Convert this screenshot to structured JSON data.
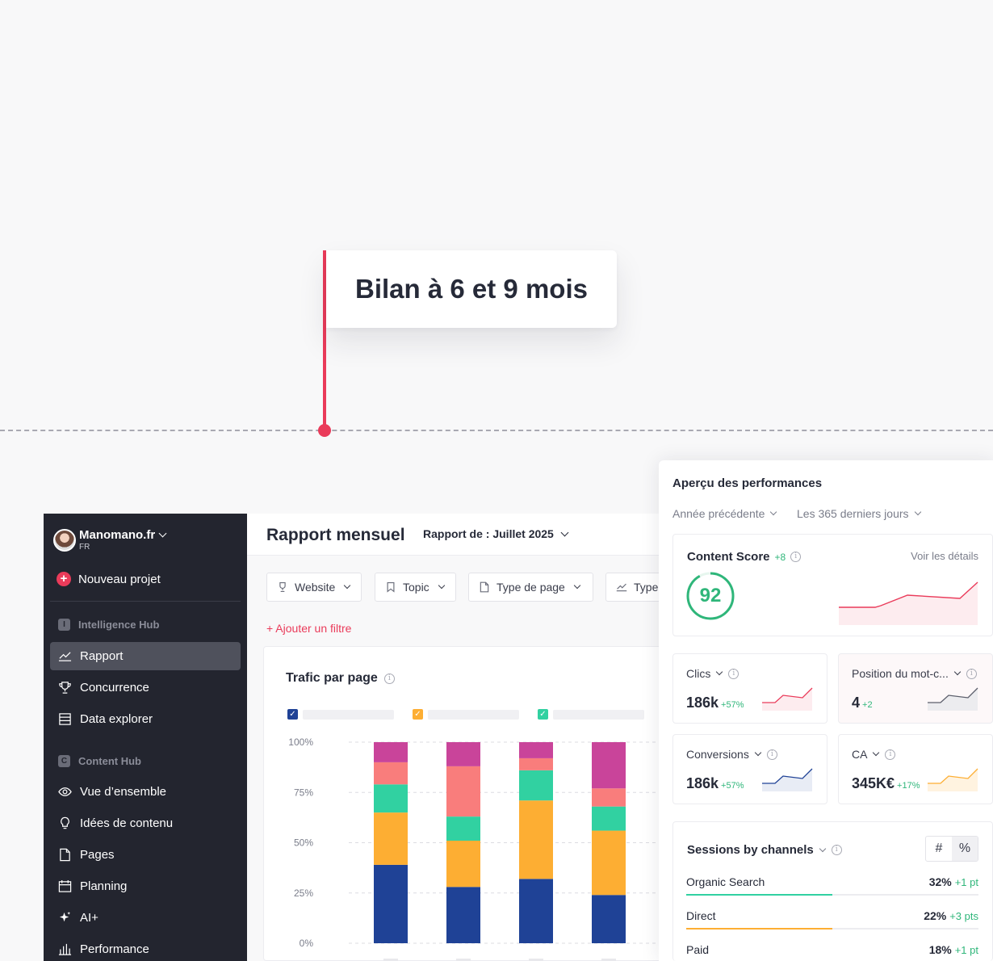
{
  "milestone": {
    "title": "Bilan à 6 et 9 mois"
  },
  "colors": {
    "accent": "#ea3b5a",
    "positive": "#2fb67a",
    "navy": "#1f4296",
    "orange": "#fdae33",
    "teal": "#31d1a1",
    "salmon": "#f97d7c",
    "magenta": "#c9449a"
  },
  "sidebar": {
    "brand": {
      "name": "Manomano.fr",
      "sub": "FR"
    },
    "new_project": "Nouveau projet",
    "sections": [
      {
        "badge": "I",
        "label": "Intelligence Hub"
      },
      {
        "badge": "C",
        "label": "Content Hub"
      }
    ],
    "items": [
      {
        "label": "Rapport",
        "icon": "trend-icon",
        "active": true
      },
      {
        "label": "Concurrence",
        "icon": "trophy-icon"
      },
      {
        "label": "Data explorer",
        "icon": "list-icon"
      },
      {
        "label": "Vue d’ensemble",
        "icon": "eye-icon"
      },
      {
        "label": "Idées de contenu",
        "icon": "bulb-icon"
      },
      {
        "label": "Pages",
        "icon": "page-icon"
      },
      {
        "label": "Planning",
        "icon": "calendar-icon"
      },
      {
        "label": "AI+",
        "icon": "sparkle-icon"
      },
      {
        "label": "Performance",
        "icon": "bars-icon"
      }
    ]
  },
  "header": {
    "title": "Rapport mensuel",
    "report_prefix": "Rapport de :",
    "report_month": "Juillet 2025"
  },
  "filters": [
    {
      "label": "Website",
      "icon": "trophy-icon"
    },
    {
      "label": "Topic",
      "icon": "bookmark-icon"
    },
    {
      "label": "Type de page",
      "icon": "page-icon"
    },
    {
      "label": "Type",
      "icon": "trend-icon"
    }
  ],
  "add_filter": "+ Ajouter un filtre",
  "chart_data": {
    "type": "bar",
    "stacked": true,
    "title": "Trafic par page",
    "yticks": [
      "100%",
      "75%",
      "50%",
      "25%",
      "0%"
    ],
    "ylim": [
      0,
      100
    ],
    "categories": [
      "",
      "",
      "",
      ""
    ],
    "series": [
      {
        "color": "#1f4296",
        "values": [
          39,
          28,
          32,
          24
        ]
      },
      {
        "color": "#fdae33",
        "values": [
          26,
          23,
          39,
          32
        ]
      },
      {
        "color": "#31d1a1",
        "values": [
          14,
          12,
          15,
          12
        ]
      },
      {
        "color": "#f97d7c",
        "values": [
          11,
          25,
          6,
          9
        ]
      },
      {
        "color": "#c9449a",
        "values": [
          10,
          12,
          8,
          23
        ]
      }
    ],
    "legend": [
      {
        "color": "#1f4296",
        "checked": true
      },
      {
        "color": "#fdae33",
        "checked": true
      },
      {
        "color": "#31d1a1",
        "checked": true
      }
    ]
  },
  "performance": {
    "title": "Aperçu des performances",
    "filters": [
      "Année précédente",
      "Les 365 derniers jours"
    ],
    "content_score": {
      "label": "Content Score",
      "delta": "+8",
      "details": "Voir les détails",
      "value": "92",
      "score": 92
    },
    "metrics": [
      {
        "label": "Clics",
        "value": "186k",
        "delta": "+57%",
        "color": "#ea3b5a",
        "fill": "#fdecef"
      },
      {
        "label": "Position du mot-c...",
        "value": "4",
        "delta": "+2",
        "color": "#5b5e6b",
        "fill": "#ececef"
      },
      {
        "label": "Conversions",
        "value": "186k",
        "delta": "+57%",
        "color": "#1f4296",
        "fill": "#e8ecf5"
      },
      {
        "label": "CA",
        "value": "345K€",
        "delta": "+17%",
        "color": "#fdae33",
        "fill": "#fff3e0"
      }
    ],
    "sessions": {
      "title": "Sessions by channels",
      "toggle": [
        "#",
        "%"
      ],
      "channels": [
        {
          "name": "Organic Search",
          "value": "32%",
          "delta": "+1 pt",
          "color": "#31d1a1",
          "share": 0.5
        },
        {
          "name": "Direct",
          "value": "22%",
          "delta": "+3 pts",
          "color": "#fdae33",
          "share": 0.5
        },
        {
          "name": "Paid",
          "value": "18%",
          "delta": "+1 pt",
          "color": "#ea3b5a",
          "share": 0.4
        }
      ]
    }
  }
}
